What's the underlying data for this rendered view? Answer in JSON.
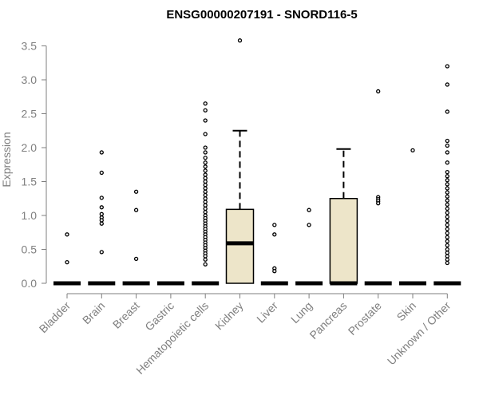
{
  "chart_data": {
    "type": "box",
    "title": "ENSG00000207191 - SNORD116-5",
    "ylabel": "Expression",
    "xlabel": "",
    "ylim": [
      0,
      3.6
    ],
    "yticks": [
      "0.0",
      "0.5",
      "1.0",
      "1.5",
      "2.0",
      "2.5",
      "3.0",
      "3.5"
    ],
    "box_fill": "#ede5c9",
    "grid": false,
    "legend": "none",
    "categories": [
      "Bladder",
      "Brain",
      "Breast",
      "Gastric",
      "Hematopoietic cells",
      "Kidney",
      "Liver",
      "Lung",
      "Pancreas",
      "Prostate",
      "Skin",
      "Unknown / Other"
    ],
    "boxes": [
      {
        "q1": 0,
        "median": 0,
        "q3": 0,
        "whisker_low": 0,
        "whisker_high": 0,
        "outliers": [
          0.72,
          0.31
        ]
      },
      {
        "q1": 0,
        "median": 0,
        "q3": 0,
        "whisker_low": 0,
        "whisker_high": 0,
        "outliers": [
          1.93,
          1.63,
          1.26,
          1.12,
          1.02,
          0.97,
          0.93,
          0.88,
          0.46
        ]
      },
      {
        "q1": 0,
        "median": 0,
        "q3": 0,
        "whisker_low": 0,
        "whisker_high": 0,
        "outliers": [
          1.35,
          1.08,
          0.36
        ]
      },
      {
        "q1": 0,
        "median": 0,
        "q3": 0,
        "whisker_low": 0,
        "whisker_high": 0,
        "outliers": []
      },
      {
        "q1": 0,
        "median": 0,
        "q3": 0,
        "whisker_low": 0,
        "whisker_high": 0,
        "outliers": [
          2.65,
          2.55,
          2.4,
          2.2,
          2.0,
          1.93,
          1.85,
          1.78,
          1.72,
          1.66,
          1.6,
          1.55,
          1.5,
          1.45,
          1.4,
          1.35,
          1.3,
          1.25,
          1.2,
          1.15,
          1.1,
          1.05,
          1.0,
          0.96,
          0.92,
          0.88,
          0.84,
          0.8,
          0.76,
          0.72,
          0.68,
          0.64,
          0.6,
          0.56,
          0.52,
          0.48,
          0.44,
          0.4,
          0.35,
          0.28
        ]
      },
      {
        "q1": 0,
        "median": 0.59,
        "q3": 1.09,
        "whisker_low": 0,
        "whisker_high": 2.25,
        "outliers": [
          3.58
        ]
      },
      {
        "q1": 0,
        "median": 0,
        "q3": 0,
        "whisker_low": 0,
        "whisker_high": 0,
        "outliers": [
          0.86,
          0.72,
          0.22,
          0.18
        ]
      },
      {
        "q1": 0,
        "median": 0,
        "q3": 0,
        "whisker_low": 0,
        "whisker_high": 0,
        "outliers": [
          1.08,
          0.86
        ]
      },
      {
        "q1": 0,
        "median": 0,
        "q3": 1.25,
        "whisker_low": 0,
        "whisker_high": 1.98,
        "outliers": []
      },
      {
        "q1": 0,
        "median": 0,
        "q3": 0,
        "whisker_low": 0,
        "whisker_high": 0,
        "outliers": [
          2.83,
          1.27,
          1.24,
          1.21,
          1.18
        ]
      },
      {
        "q1": 0,
        "median": 0,
        "q3": 0,
        "whisker_low": 0,
        "whisker_high": 0,
        "outliers": [
          1.96
        ]
      },
      {
        "q1": 0,
        "median": 0,
        "q3": 0,
        "whisker_low": 0,
        "whisker_high": 0,
        "outliers": [
          3.2,
          2.93,
          2.53,
          2.1,
          2.03,
          1.93,
          1.78,
          1.64,
          1.58,
          1.52,
          1.46,
          1.4,
          1.34,
          1.28,
          1.22,
          1.16,
          1.1,
          1.04,
          0.98,
          0.92,
          0.86,
          0.8,
          0.74,
          0.68,
          0.62,
          0.56,
          0.5,
          0.45,
          0.4,
          0.35,
          0.3
        ]
      }
    ]
  }
}
